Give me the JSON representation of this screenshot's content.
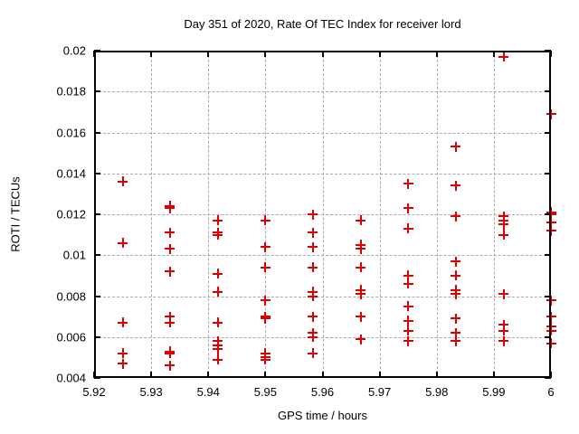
{
  "colors": {
    "background": "#ffffff",
    "border": "#000000",
    "grid": "#a9a9a9",
    "marker": "#dd0000",
    "text": "#000000"
  },
  "chart_data": {
    "type": "scatter",
    "title": "Day 351 of 2020, Rate Of TEC Index for receiver lord",
    "xlabel": "GPS time / hours",
    "ylabel": "ROTI / TECUs",
    "xlim": [
      5.92,
      6.0
    ],
    "ylim": [
      0.004,
      0.02
    ],
    "grid": true,
    "legend": false,
    "marker": "plus",
    "x_axis": {
      "tick_values": [
        5.92,
        5.93,
        5.94,
        5.95,
        5.96,
        5.97,
        5.98,
        5.99,
        6.0
      ],
      "tick_labels": [
        "5.92",
        "5.93",
        "5.94",
        "5.95",
        "5.96",
        "5.97",
        "5.98",
        "5.99",
        "6"
      ]
    },
    "y_axis": {
      "tick_values": [
        0.004,
        0.006,
        0.008,
        0.01,
        0.012,
        0.014,
        0.016,
        0.018,
        0.02
      ],
      "tick_labels": [
        "0.004",
        "0.006",
        "0.008",
        "0.01",
        "0.012",
        "0.014",
        "0.016",
        "0.018",
        "0.02"
      ]
    },
    "points": [
      [
        5.925,
        0.0136
      ],
      [
        5.925,
        0.0106
      ],
      [
        5.925,
        0.0067
      ],
      [
        5.925,
        0.0052
      ],
      [
        5.925,
        0.0047
      ],
      [
        5.9333,
        0.0124
      ],
      [
        5.9333,
        0.0123
      ],
      [
        5.9333,
        0.0111
      ],
      [
        5.9333,
        0.0103
      ],
      [
        5.9333,
        0.0092
      ],
      [
        5.9333,
        0.007
      ],
      [
        5.9333,
        0.0067
      ],
      [
        5.9333,
        0.0053
      ],
      [
        5.9333,
        0.0052
      ],
      [
        5.9333,
        0.0046
      ],
      [
        5.9417,
        0.0117
      ],
      [
        5.9417,
        0.0111
      ],
      [
        5.9417,
        0.011
      ],
      [
        5.9417,
        0.0091
      ],
      [
        5.9417,
        0.0082
      ],
      [
        5.9417,
        0.0067
      ],
      [
        5.9417,
        0.0058
      ],
      [
        5.9417,
        0.0056
      ],
      [
        5.9417,
        0.0054
      ],
      [
        5.9417,
        0.0049
      ],
      [
        5.95,
        0.0117
      ],
      [
        5.95,
        0.0104
      ],
      [
        5.95,
        0.0094
      ],
      [
        5.95,
        0.0078
      ],
      [
        5.95,
        0.007
      ],
      [
        5.95,
        0.0069
      ],
      [
        5.95,
        0.0052
      ],
      [
        5.95,
        0.005
      ],
      [
        5.95,
        0.0049
      ],
      [
        5.9583,
        0.012
      ],
      [
        5.9583,
        0.0111
      ],
      [
        5.9583,
        0.0104
      ],
      [
        5.9583,
        0.0094
      ],
      [
        5.9583,
        0.0082
      ],
      [
        5.9583,
        0.008
      ],
      [
        5.9583,
        0.007
      ],
      [
        5.9583,
        0.0062
      ],
      [
        5.9583,
        0.006
      ],
      [
        5.9583,
        0.0052
      ],
      [
        5.9667,
        0.0117
      ],
      [
        5.9667,
        0.0105
      ],
      [
        5.9667,
        0.0103
      ],
      [
        5.9667,
        0.0094
      ],
      [
        5.9667,
        0.0083
      ],
      [
        5.9667,
        0.0081
      ],
      [
        5.9667,
        0.007
      ],
      [
        5.9667,
        0.0059
      ],
      [
        5.975,
        0.0135
      ],
      [
        5.975,
        0.0123
      ],
      [
        5.975,
        0.0113
      ],
      [
        5.975,
        0.009
      ],
      [
        5.975,
        0.0086
      ],
      [
        5.975,
        0.0075
      ],
      [
        5.975,
        0.0068
      ],
      [
        5.975,
        0.0063
      ],
      [
        5.975,
        0.0058
      ],
      [
        5.9833,
        0.0153
      ],
      [
        5.9833,
        0.0134
      ],
      [
        5.9833,
        0.0119
      ],
      [
        5.9833,
        0.0097
      ],
      [
        5.9833,
        0.009
      ],
      [
        5.9833,
        0.0083
      ],
      [
        5.9833,
        0.0081
      ],
      [
        5.9833,
        0.0069
      ],
      [
        5.9833,
        0.0062
      ],
      [
        5.9833,
        0.0058
      ],
      [
        5.9917,
        0.0197
      ],
      [
        5.9917,
        0.0119
      ],
      [
        5.9917,
        0.0117
      ],
      [
        5.9917,
        0.0115
      ],
      [
        5.9917,
        0.011
      ],
      [
        5.9917,
        0.0081
      ],
      [
        5.9917,
        0.0066
      ],
      [
        5.9917,
        0.0063
      ],
      [
        5.9917,
        0.0058
      ],
      [
        6.0,
        0.0169
      ],
      [
        6.0,
        0.0121
      ],
      [
        6.0,
        0.012
      ],
      [
        6.0,
        0.0116
      ],
      [
        6.0,
        0.0112
      ],
      [
        6.0,
        0.0078
      ],
      [
        6.0,
        0.007
      ],
      [
        6.0,
        0.0065
      ],
      [
        6.0,
        0.0063
      ],
      [
        6.0,
        0.0057
      ]
    ]
  }
}
